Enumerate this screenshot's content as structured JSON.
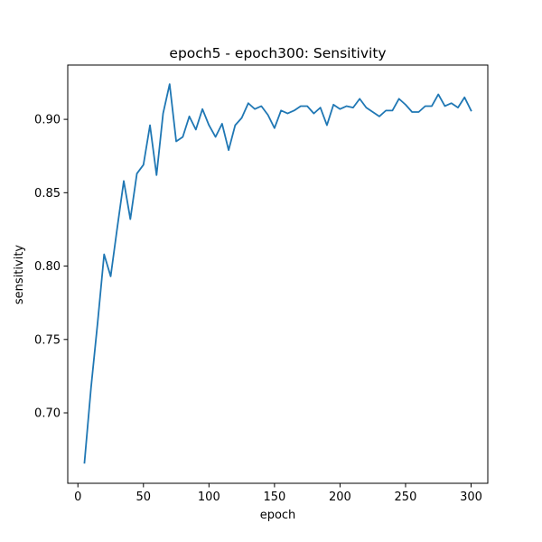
{
  "chart_data": {
    "type": "line",
    "title": "epoch5 - epoch300: Sensitivity",
    "xlabel": "epoch",
    "ylabel": "sensitivity",
    "xlim": [
      -7.75,
      312.75
    ],
    "ylim": [
      0.652,
      0.937
    ],
    "xticks": [
      0,
      50,
      100,
      150,
      200,
      250,
      300
    ],
    "xtick_labels": [
      "0",
      "50",
      "100",
      "150",
      "200",
      "250",
      "300"
    ],
    "yticks": [
      0.7,
      0.75,
      0.8,
      0.85,
      0.9
    ],
    "ytick_labels": [
      "0.70",
      "0.75",
      "0.80",
      "0.85",
      "0.90"
    ],
    "grid": false,
    "line_color": "#1f77b4",
    "series": [
      {
        "x": [
          5,
          10,
          15,
          20,
          25,
          30,
          35,
          40,
          45,
          50,
          55,
          60,
          65,
          70,
          75,
          80,
          85,
          90,
          95,
          100,
          105,
          110,
          115,
          120,
          125,
          130,
          135,
          140,
          145,
          150,
          155,
          160,
          165,
          170,
          175,
          180,
          185,
          190,
          195,
          200,
          205,
          210,
          215,
          220,
          225,
          230,
          235,
          240,
          245,
          250,
          255,
          260,
          265,
          270,
          275,
          280,
          285,
          290,
          295,
          300
        ],
        "y": [
          0.666,
          0.717,
          0.761,
          0.808,
          0.793,
          0.826,
          0.858,
          0.832,
          0.863,
          0.869,
          0.896,
          0.862,
          0.904,
          0.924,
          0.885,
          0.888,
          0.902,
          0.893,
          0.907,
          0.896,
          0.888,
          0.897,
          0.879,
          0.896,
          0.901,
          0.911,
          0.907,
          0.909,
          0.903,
          0.894,
          0.906,
          0.904,
          0.906,
          0.909,
          0.909,
          0.904,
          0.908,
          0.896,
          0.91,
          0.907,
          0.909,
          0.908,
          0.914,
          0.908,
          0.905,
          0.902,
          0.906,
          0.906,
          0.914,
          0.91,
          0.905,
          0.905,
          0.909,
          0.909,
          0.917,
          0.909,
          0.911,
          0.908,
          0.915,
          0.906
        ]
      }
    ]
  }
}
